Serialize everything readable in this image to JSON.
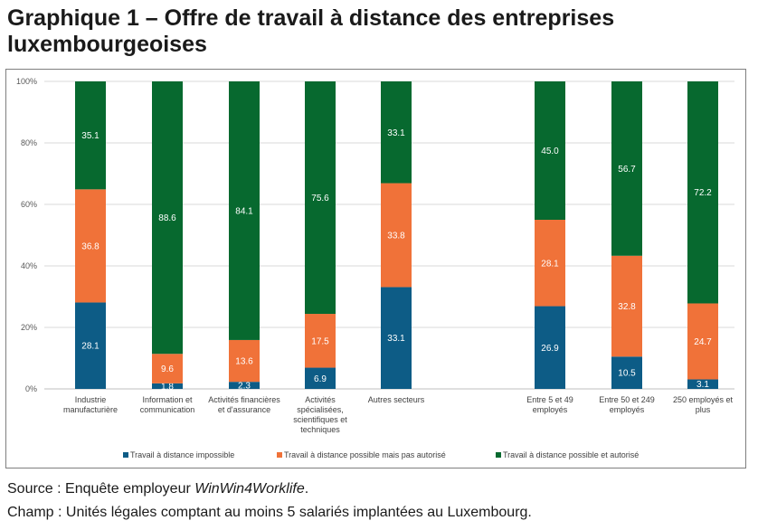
{
  "title": "Graphique 1 – Offre de travail à distance des entreprises luxembourgeoises",
  "source": {
    "prefix": "Source : Enquête employeur ",
    "name": "WinWin4Worklife",
    "suffix": "."
  },
  "champ": "Champ : Unités légales comptant au moins 5 salariés implantées au Luxembourg.",
  "chart_data": {
    "type": "bar",
    "stacked": true,
    "y_tick_labels": [
      "0%",
      "20%",
      "40%",
      "60%",
      "80%",
      "100%"
    ],
    "ylim": [
      0,
      100
    ],
    "legend_position": "bottom",
    "categories": [
      [
        "Industrie",
        "manufacturière"
      ],
      [
        "Information et",
        "communication"
      ],
      [
        "Activités financières",
        "et d'assurance"
      ],
      [
        "Activités",
        "spécialisées,",
        "scientifiques et",
        "techniques"
      ],
      [
        "Autres secteurs"
      ],
      [
        "Entre 5 et 49",
        "employés"
      ],
      [
        "Entre 50 et 249",
        "employés"
      ],
      [
        "250 employés et",
        "plus"
      ]
    ],
    "series": [
      {
        "name": "Travail à distance impossible",
        "color": "#0d5c86",
        "values": [
          28.1,
          1.8,
          2.3,
          6.9,
          33.1,
          26.9,
          10.5,
          3.1
        ],
        "labels": [
          "28.1",
          "1.8",
          "2.3",
          "6.9",
          "33.1",
          "26.9",
          "10.5",
          "3.1"
        ]
      },
      {
        "name": "Travail à distance possible mais pas autorisé",
        "color": "#f07239",
        "values": [
          36.8,
          9.6,
          13.6,
          17.5,
          33.8,
          28.1,
          32.8,
          24.7
        ],
        "labels": [
          "36.8",
          "9.6",
          "13.6",
          "17.5",
          "33.8",
          "28.1",
          "32.8",
          "24.7"
        ]
      },
      {
        "name": "Travail à distance possible et autorisé",
        "color": "#07692f",
        "values": [
          35.1,
          88.6,
          84.1,
          75.6,
          33.1,
          45.0,
          56.7,
          72.2
        ],
        "labels": [
          "35.1",
          "88.6",
          "84.1",
          "75.6",
          "33.1",
          "45.0",
          "56.7",
          "72.2"
        ]
      }
    ]
  }
}
